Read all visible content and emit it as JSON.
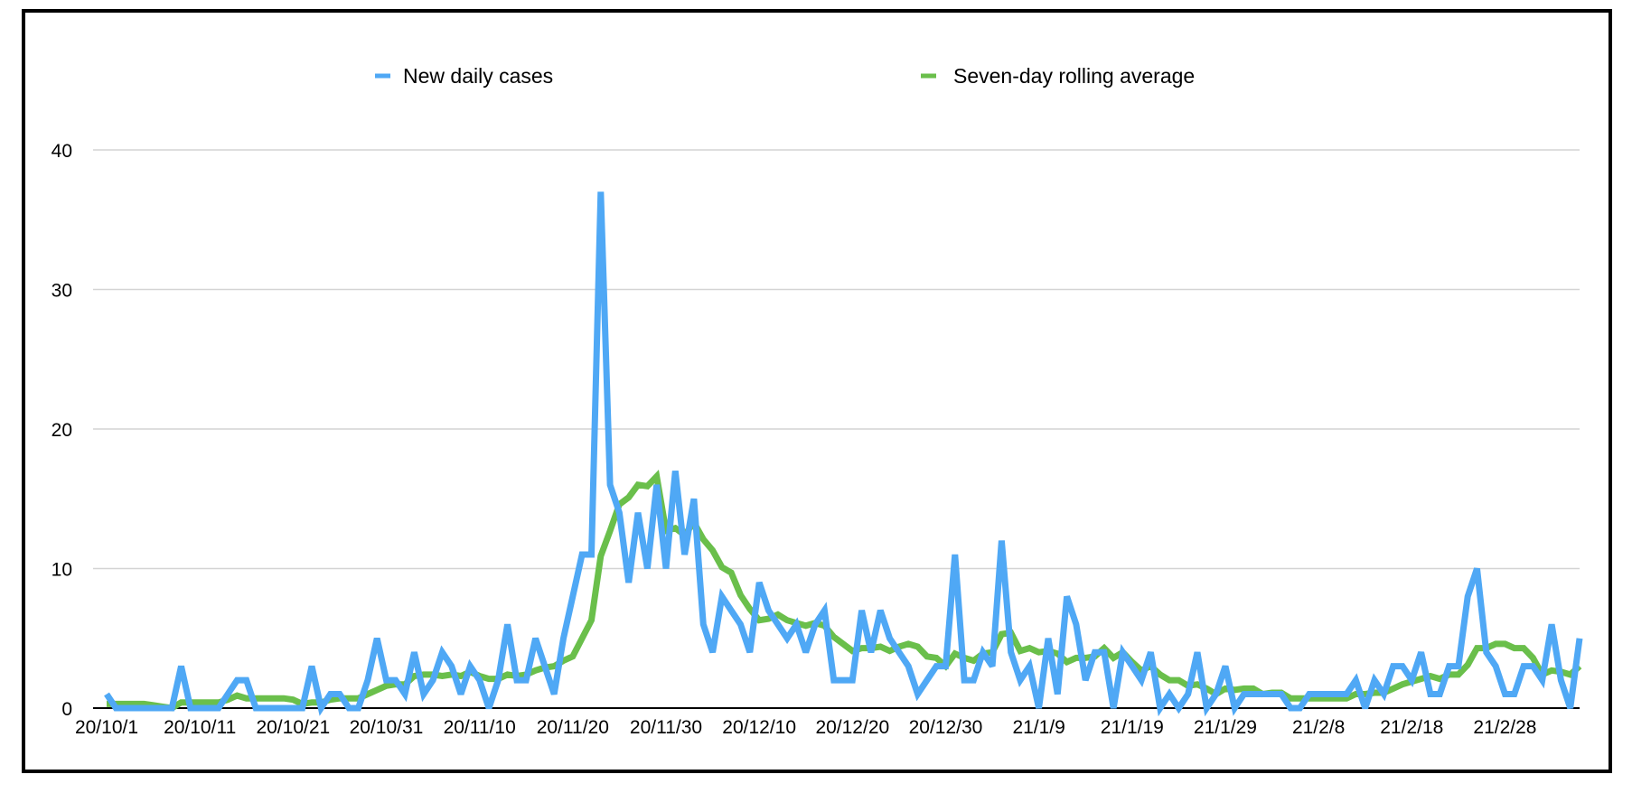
{
  "chart_data": {
    "type": "line",
    "title": "",
    "xlabel": "",
    "ylabel": "",
    "ylim": [
      0,
      40
    ],
    "y_ticks": [
      "0",
      "10",
      "20",
      "30",
      "40"
    ],
    "grid": "horizontal",
    "legend_placement": "top-center",
    "x_ticks": [
      "20/10/1",
      "20/10/11",
      "20/10/21",
      "20/10/31",
      "20/11/10",
      "20/11/20",
      "20/11/30",
      "20/12/10",
      "20/12/20",
      "20/12/30",
      "21/1/9",
      "21/1/19",
      "21/1/29",
      "21/2/8",
      "21/2/18",
      "21/2/28"
    ],
    "x": [
      "20/10/1",
      "20/10/2",
      "20/10/3",
      "20/10/4",
      "20/10/5",
      "20/10/6",
      "20/10/7",
      "20/10/8",
      "20/10/9",
      "20/10/10",
      "20/10/11",
      "20/10/12",
      "20/10/13",
      "20/10/14",
      "20/10/15",
      "20/10/16",
      "20/10/17",
      "20/10/18",
      "20/10/19",
      "20/10/20",
      "20/10/21",
      "20/10/22",
      "20/10/23",
      "20/10/24",
      "20/10/25",
      "20/10/26",
      "20/10/27",
      "20/10/28",
      "20/10/29",
      "20/10/30",
      "20/10/31",
      "20/11/1",
      "20/11/2",
      "20/11/3",
      "20/11/4",
      "20/11/5",
      "20/11/6",
      "20/11/7",
      "20/11/8",
      "20/11/9",
      "20/11/10",
      "20/11/11",
      "20/11/12",
      "20/11/13",
      "20/11/14",
      "20/11/15",
      "20/11/16",
      "20/11/17",
      "20/11/18",
      "20/11/19",
      "20/11/20",
      "20/11/21",
      "20/11/22",
      "20/11/23",
      "20/11/24",
      "20/11/25",
      "20/11/26",
      "20/11/27",
      "20/11/28",
      "20/11/29",
      "20/11/30",
      "20/12/1",
      "20/12/2",
      "20/12/3",
      "20/12/4",
      "20/12/5",
      "20/12/6",
      "20/12/7",
      "20/12/8",
      "20/12/9",
      "20/12/10",
      "20/12/11",
      "20/12/12",
      "20/12/13",
      "20/12/14",
      "20/12/15",
      "20/12/16",
      "20/12/17",
      "20/12/18",
      "20/12/19",
      "20/12/20",
      "20/12/21",
      "20/12/22",
      "20/12/23",
      "20/12/24",
      "20/12/25",
      "20/12/26",
      "20/12/27",
      "20/12/28",
      "20/12/29",
      "20/12/30",
      "20/12/31",
      "21/1/1",
      "21/1/2",
      "21/1/3",
      "21/1/4",
      "21/1/5",
      "21/1/6",
      "21/1/7",
      "21/1/8",
      "21/1/9",
      "21/1/10",
      "21/1/11",
      "21/1/12",
      "21/1/13",
      "21/1/14",
      "21/1/15",
      "21/1/16",
      "21/1/17",
      "21/1/18",
      "21/1/19",
      "21/1/20",
      "21/1/21",
      "21/1/22",
      "21/1/23",
      "21/1/24",
      "21/1/25",
      "21/1/26",
      "21/1/27",
      "21/1/28",
      "21/1/29",
      "21/1/30",
      "21/1/31",
      "21/2/1",
      "21/2/2",
      "21/2/3",
      "21/2/4",
      "21/2/5",
      "21/2/6",
      "21/2/7",
      "21/2/8",
      "21/2/9",
      "21/2/10",
      "21/2/11",
      "21/2/12",
      "21/2/13",
      "21/2/14",
      "21/2/15",
      "21/2/16",
      "21/2/17",
      "21/2/18",
      "21/2/19",
      "21/2/20",
      "21/2/21",
      "21/2/22",
      "21/2/23",
      "21/2/24",
      "21/2/25",
      "21/2/26",
      "21/2/27",
      "21/2/28",
      "21/3/1",
      "21/3/2",
      "21/3/3",
      "21/3/4",
      "21/3/5",
      "21/3/6",
      "21/3/7",
      "21/3/8"
    ],
    "series": [
      {
        "name": "New daily cases",
        "color": "#4fa8f5",
        "values": [
          1,
          0,
          0,
          0,
          0,
          0,
          0,
          0,
          3,
          0,
          0,
          0,
          0,
          1,
          2,
          2,
          0,
          0,
          0,
          0,
          0,
          0,
          3,
          0,
          1,
          1,
          0,
          0,
          2,
          5,
          2,
          2,
          1,
          4,
          1,
          2,
          4,
          3,
          1,
          3,
          2,
          0,
          2,
          6,
          2,
          2,
          5,
          3,
          1,
          5,
          8,
          11,
          11,
          37,
          16,
          14,
          9,
          14,
          10,
          16,
          10,
          17,
          11,
          15,
          6,
          4,
          8,
          7,
          6,
          4,
          9,
          7,
          6,
          5,
          6,
          4,
          6,
          7,
          2,
          2,
          2,
          7,
          4,
          7,
          5,
          4,
          3,
          1,
          2,
          3,
          3,
          11,
          2,
          2,
          4,
          3,
          12,
          4,
          2,
          3,
          0,
          5,
          1,
          8,
          6,
          2,
          4,
          4,
          0,
          4,
          3,
          2,
          4,
          0,
          1,
          0,
          1,
          4,
          0,
          1,
          3,
          0,
          1,
          1,
          1,
          1,
          1,
          0,
          0,
          1,
          1,
          1,
          1,
          1,
          2,
          0,
          2,
          1,
          3,
          3,
          2,
          4,
          1,
          1,
          3,
          3,
          8,
          10,
          4,
          3,
          1,
          1,
          3,
          3,
          2,
          6,
          2,
          0,
          5
        ]
      },
      {
        "name": "Seven-day rolling average",
        "color": "#6abf4b",
        "values": [
          0.3,
          0.3,
          0.3,
          0.3,
          0.3,
          0.2,
          0.1,
          0.0,
          0.4,
          0.4,
          0.4,
          0.4,
          0.4,
          0.6,
          0.9,
          0.7,
          0.7,
          0.7,
          0.7,
          0.7,
          0.6,
          0.3,
          0.4,
          0.4,
          0.6,
          0.7,
          0.7,
          0.7,
          1.0,
          1.3,
          1.6,
          1.7,
          1.7,
          2.3,
          2.4,
          2.4,
          2.3,
          2.4,
          2.3,
          2.6,
          2.3,
          2.1,
          2.1,
          2.4,
          2.3,
          2.4,
          2.7,
          2.9,
          3.0,
          3.4,
          3.7,
          5.0,
          6.3,
          10.9,
          12.7,
          14.6,
          15.1,
          16.0,
          15.9,
          16.6,
          12.7,
          12.9,
          12.4,
          13.3,
          12.1,
          11.3,
          10.1,
          9.7,
          8.1,
          7.1,
          6.3,
          6.4,
          6.7,
          6.3,
          6.1,
          5.9,
          6.1,
          5.9,
          5.1,
          4.6,
          4.1,
          4.3,
          4.3,
          4.4,
          4.1,
          4.4,
          4.6,
          4.4,
          3.7,
          3.6,
          3.0,
          3.9,
          3.6,
          3.4,
          3.9,
          4.0,
          5.3,
          5.4,
          4.1,
          4.3,
          4.0,
          4.1,
          3.9,
          3.3,
          3.6,
          3.6,
          3.7,
          4.3,
          3.6,
          4.0,
          3.3,
          2.7,
          3.0,
          2.4,
          2.0,
          2.0,
          1.6,
          1.7,
          1.4,
          1.0,
          1.4,
          1.3,
          1.4,
          1.4,
          1.0,
          1.1,
          1.1,
          0.7,
          0.7,
          0.7,
          0.7,
          0.7,
          0.7,
          0.7,
          1.0,
          1.0,
          1.1,
          1.1,
          1.4,
          1.7,
          1.9,
          2.1,
          2.3,
          2.1,
          2.4,
          2.4,
          3.1,
          4.3,
          4.3,
          4.6,
          4.6,
          4.3,
          4.3,
          3.6,
          2.4,
          2.7,
          2.6,
          2.4,
          3.0
        ]
      }
    ]
  }
}
